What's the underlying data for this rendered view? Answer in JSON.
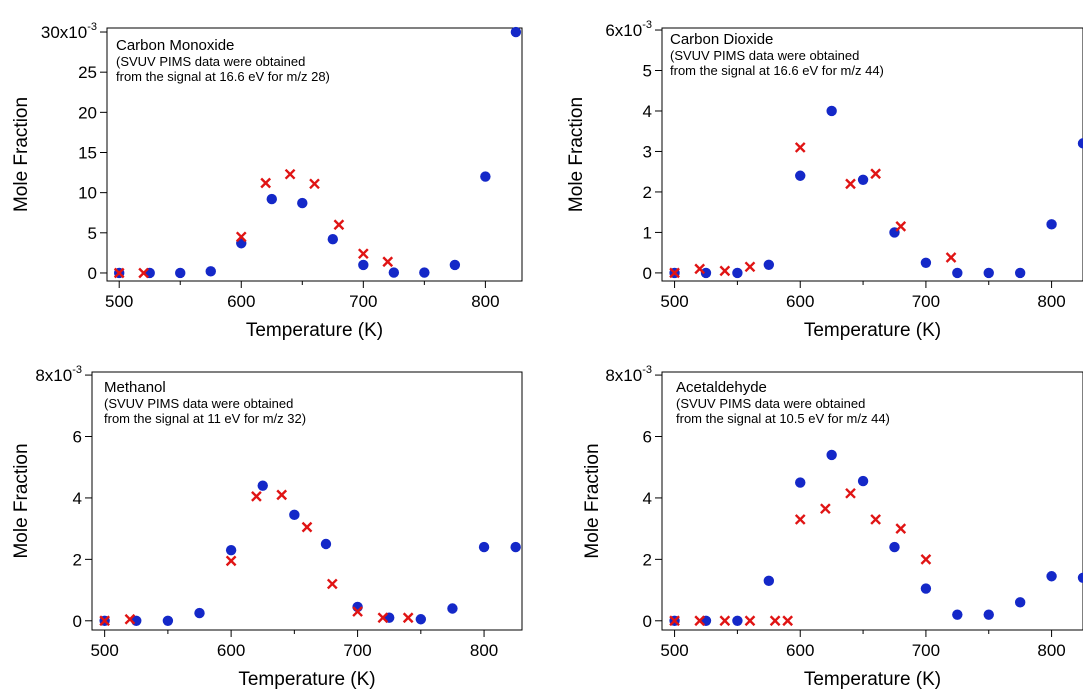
{
  "colors": {
    "circle_series": "#1428c8",
    "cross_series": "#e01414"
  },
  "chart_data": [
    {
      "type": "scatter",
      "xlabel": "Temperature (K)",
      "ylabel": "Mole Fraction",
      "y_multiplier_label": "x10",
      "y_multiplier_exponent": "-3",
      "xlim": [
        490,
        830
      ],
      "ylim": [
        -1,
        30.5
      ],
      "xticks": [
        500,
        600,
        700,
        800
      ],
      "yticks": [
        0,
        5,
        10,
        15,
        20,
        25,
        30
      ],
      "top_tick_label": "30",
      "annotation": {
        "title": "Carbon Monoxide",
        "lines": [
          "(SVUV PIMS data were obtained",
          "from the signal at 16.6 eV for m/z 28)"
        ]
      },
      "series": [
        {
          "marker": "circle",
          "x": [
            500,
            525,
            550,
            575,
            600,
            625,
            650,
            675,
            700,
            725,
            750,
            775,
            800,
            825
          ],
          "y": [
            0,
            0,
            0,
            0.2,
            3.7,
            9.2,
            8.7,
            4.2,
            1.0,
            0.05,
            0.05,
            1.0,
            12.0,
            30.0
          ]
        },
        {
          "marker": "cross",
          "x": [
            500,
            520,
            600,
            620,
            640,
            660,
            680,
            700,
            720
          ],
          "y": [
            0,
            0,
            4.5,
            11.2,
            12.3,
            11.1,
            6.0,
            2.4,
            1.4
          ]
        }
      ]
    },
    {
      "type": "scatter",
      "xlabel": "Temperature (K)",
      "ylabel": "Mole Fraction",
      "y_multiplier_label": "x10",
      "y_multiplier_exponent": "-3",
      "xlim": [
        490,
        825
      ],
      "ylim": [
        -0.2,
        6.05
      ],
      "xticks": [
        500,
        600,
        700,
        800
      ],
      "yticks": [
        0,
        1,
        2,
        3,
        4,
        5,
        6
      ],
      "top_tick_label": "6",
      "annotation": {
        "title": "Carbon Dioxide",
        "lines": [
          "(SVUV PIMS data were obtained",
          "from the signal at 16.6 eV for m/z 44)"
        ]
      },
      "series": [
        {
          "marker": "circle",
          "x": [
            500,
            525,
            550,
            575,
            600,
            625,
            650,
            675,
            700,
            725,
            750,
            775,
            800,
            825
          ],
          "y": [
            0,
            0,
            0,
            0.2,
            2.4,
            4.0,
            2.3,
            1.0,
            0.25,
            0,
            0,
            0,
            1.2,
            3.2
          ]
        },
        {
          "marker": "cross",
          "x": [
            500,
            520,
            540,
            560,
            600,
            640,
            660,
            680,
            720
          ],
          "y": [
            0,
            0.1,
            0.05,
            0.15,
            3.1,
            2.2,
            2.45,
            1.15,
            0.38
          ]
        }
      ]
    },
    {
      "type": "scatter",
      "xlabel": "Temperature (K)",
      "ylabel": "Mole Fraction",
      "y_multiplier_label": "x10",
      "y_multiplier_exponent": "-3",
      "xlim": [
        490,
        830
      ],
      "ylim": [
        -0.3,
        8.1
      ],
      "xticks": [
        500,
        600,
        700,
        800
      ],
      "yticks": [
        0,
        2,
        4,
        6,
        8
      ],
      "top_tick_label": "8",
      "annotation": {
        "title": "Methanol",
        "lines": [
          "(SVUV PIMS data were obtained",
          "from the signal at 11 eV for m/z 32)"
        ]
      },
      "series": [
        {
          "marker": "circle",
          "x": [
            500,
            525,
            550,
            575,
            600,
            625,
            650,
            675,
            700,
            725,
            750,
            775,
            800,
            825
          ],
          "y": [
            0,
            0,
            0,
            0.25,
            2.3,
            4.4,
            3.45,
            2.5,
            0.45,
            0.1,
            0.05,
            0.4,
            2.4,
            2.4
          ]
        },
        {
          "marker": "cross",
          "x": [
            500,
            520,
            600,
            620,
            640,
            660,
            680,
            700,
            720,
            740
          ],
          "y": [
            0,
            0.05,
            1.95,
            4.05,
            4.1,
            3.05,
            1.2,
            0.3,
            0.1,
            0.1
          ]
        }
      ]
    },
    {
      "type": "scatter",
      "xlabel": "Temperature (K)",
      "ylabel": "Mole Fraction",
      "y_multiplier_label": "x10",
      "y_multiplier_exponent": "-3",
      "xlim": [
        490,
        825
      ],
      "ylim": [
        -0.3,
        8.1
      ],
      "xticks": [
        500,
        600,
        700,
        800
      ],
      "yticks": [
        0,
        2,
        4,
        6,
        8
      ],
      "top_tick_label": "8",
      "annotation": {
        "title": "Acetaldehyde",
        "lines": [
          "(SVUV PIMS data were obtained",
          "from the signal at 10.5 eV for m/z 44)"
        ]
      },
      "series": [
        {
          "marker": "circle",
          "x": [
            500,
            525,
            550,
            575,
            600,
            625,
            650,
            675,
            700,
            725,
            750,
            775,
            800,
            825
          ],
          "y": [
            0,
            0,
            0,
            1.3,
            4.5,
            5.4,
            4.55,
            2.4,
            1.05,
            0.2,
            0.2,
            0.6,
            1.45,
            1.4
          ]
        },
        {
          "marker": "cross",
          "x": [
            500,
            520,
            540,
            560,
            580,
            590,
            600,
            620,
            640,
            660,
            680,
            700
          ],
          "y": [
            0,
            0,
            0,
            0,
            0,
            0,
            3.3,
            3.65,
            4.15,
            3.3,
            3.0,
            2.0
          ]
        }
      ]
    }
  ]
}
